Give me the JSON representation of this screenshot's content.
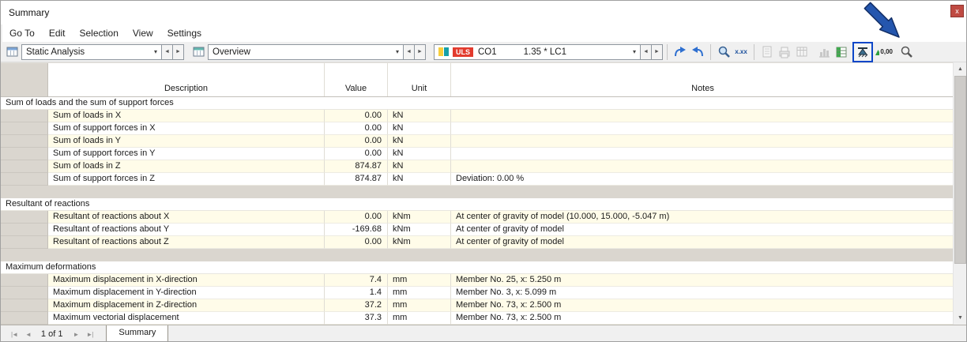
{
  "window": {
    "title": "Summary",
    "close_glyph": "x"
  },
  "menu": {
    "items": [
      "Go To",
      "Edit",
      "Selection",
      "View",
      "Settings"
    ]
  },
  "toolbar": {
    "analysis_combo": "Static Analysis",
    "view_combo": "Overview",
    "uls_badge": "ULS",
    "combo_name": "CO1",
    "load_expression": "1.35 * LC1",
    "result_values_label": "x.xx",
    "decimals_label": "0,00"
  },
  "table": {
    "headers": [
      "Description",
      "Value",
      "Unit",
      "Notes"
    ],
    "sections": [
      {
        "title": "Sum of loads and the sum of support forces",
        "rows": [
          {
            "description": "Sum of loads in X",
            "value": "0.00",
            "unit": "kN",
            "notes": ""
          },
          {
            "description": "Sum of support forces in X",
            "value": "0.00",
            "unit": "kN",
            "notes": ""
          },
          {
            "description": "Sum of loads in Y",
            "value": "0.00",
            "unit": "kN",
            "notes": ""
          },
          {
            "description": "Sum of support forces in Y",
            "value": "0.00",
            "unit": "kN",
            "notes": ""
          },
          {
            "description": "Sum of loads in Z",
            "value": "874.87",
            "unit": "kN",
            "notes": ""
          },
          {
            "description": "Sum of support forces in Z",
            "value": "874.87",
            "unit": "kN",
            "notes": "Deviation: 0.00 %"
          }
        ]
      },
      {
        "title": "Resultant of reactions",
        "rows": [
          {
            "description": "Resultant of reactions about X",
            "value": "0.00",
            "unit": "kNm",
            "notes": "At center of gravity of model (10.000, 15.000, -5.047 m)"
          },
          {
            "description": "Resultant of reactions about Y",
            "value": "-169.68",
            "unit": "kNm",
            "notes": "At center of gravity of model"
          },
          {
            "description": "Resultant of reactions about Z",
            "value": "0.00",
            "unit": "kNm",
            "notes": "At center of gravity of model"
          }
        ]
      },
      {
        "title": "Maximum deformations",
        "rows": [
          {
            "description": "Maximum displacement in X-direction",
            "value": "7.4",
            "unit": "mm",
            "notes": "Member No. 25, x: 5.250 m"
          },
          {
            "description": "Maximum displacement in Y-direction",
            "value": "1.4",
            "unit": "mm",
            "notes": "Member No. 3, x: 5.099 m"
          },
          {
            "description": "Maximum displacement in Z-direction",
            "value": "37.2",
            "unit": "mm",
            "notes": "Member No. 73, x: 2.500 m"
          },
          {
            "description": "Maximum vectorial displacement",
            "value": "37.3",
            "unit": "mm",
            "notes": "Member No. 73, x: 2.500 m"
          }
        ]
      }
    ]
  },
  "statusbar": {
    "page_indicator": "1 of 1",
    "tab_label": "Summary"
  }
}
